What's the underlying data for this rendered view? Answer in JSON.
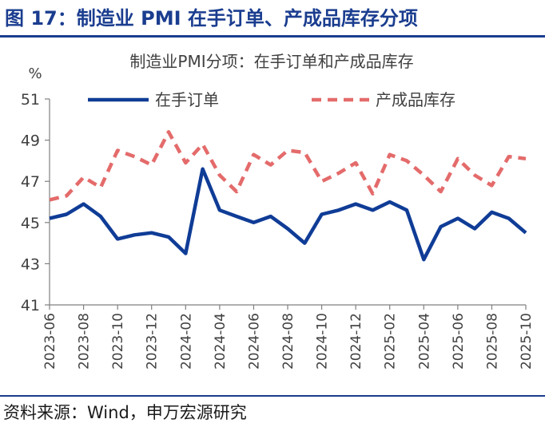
{
  "figure_title": "图 17：制造业 PMI 在手订单、产成品库存分项",
  "source_note": "资料来源：Wind，申万宏源研究",
  "colors": {
    "title": "#1a3d8f",
    "orders": "#0f3c96",
    "inventory": "#e46b6b"
  },
  "chart_data": {
    "type": "line",
    "title": "制造业PMI分项：在手订单和产成品库存",
    "ylabel": "%",
    "xlabel": "",
    "ylim": [
      41,
      51
    ],
    "yticks": [
      41,
      43,
      45,
      47,
      49,
      51
    ],
    "grid": false,
    "legend_position": "top",
    "x": [
      "2023-06",
      "2023-07",
      "2023-08",
      "2023-09",
      "2023-10",
      "2023-11",
      "2023-12",
      "2024-01",
      "2024-02",
      "2024-03",
      "2024-04",
      "2024-05",
      "2024-06",
      "2024-07",
      "2024-08",
      "2024-09",
      "2024-10",
      "2024-11",
      "2024-12",
      "2025-01",
      "2025-02",
      "2025-03",
      "2025-04",
      "2025-05",
      "2025-06",
      "2025-07",
      "2025-08",
      "2025-09",
      "2025-10"
    ],
    "xtick_labels": [
      "2023-06",
      "2023-08",
      "2023-10",
      "2023-12",
      "2024-02",
      "2024-04",
      "2024-06",
      "2024-08",
      "2024-10",
      "2024-12",
      "2025-02",
      "2025-04",
      "2025-06",
      "2025-08",
      "2025-10"
    ],
    "series": [
      {
        "name": "在手订单",
        "style": "solid",
        "color": "#0f3c96",
        "values": [
          45.2,
          45.4,
          45.9,
          45.3,
          44.2,
          44.4,
          44.5,
          44.3,
          43.5,
          47.6,
          45.6,
          45.3,
          45.0,
          45.3,
          44.7,
          44.0,
          45.4,
          45.6,
          45.9,
          45.6,
          46.0,
          45.6,
          43.2,
          44.8,
          45.2,
          44.7,
          45.5,
          45.2,
          44.5
        ]
      },
      {
        "name": "产成品库存",
        "style": "dashed",
        "color": "#e46b6b",
        "values": [
          46.1,
          46.3,
          47.2,
          46.7,
          48.5,
          48.2,
          47.8,
          49.4,
          47.9,
          48.8,
          47.3,
          46.5,
          48.3,
          47.8,
          48.5,
          48.4,
          47.0,
          47.4,
          47.9,
          46.4,
          48.3,
          48.0,
          47.3,
          46.5,
          48.1,
          47.3,
          46.8,
          48.2,
          48.1
        ]
      }
    ]
  }
}
